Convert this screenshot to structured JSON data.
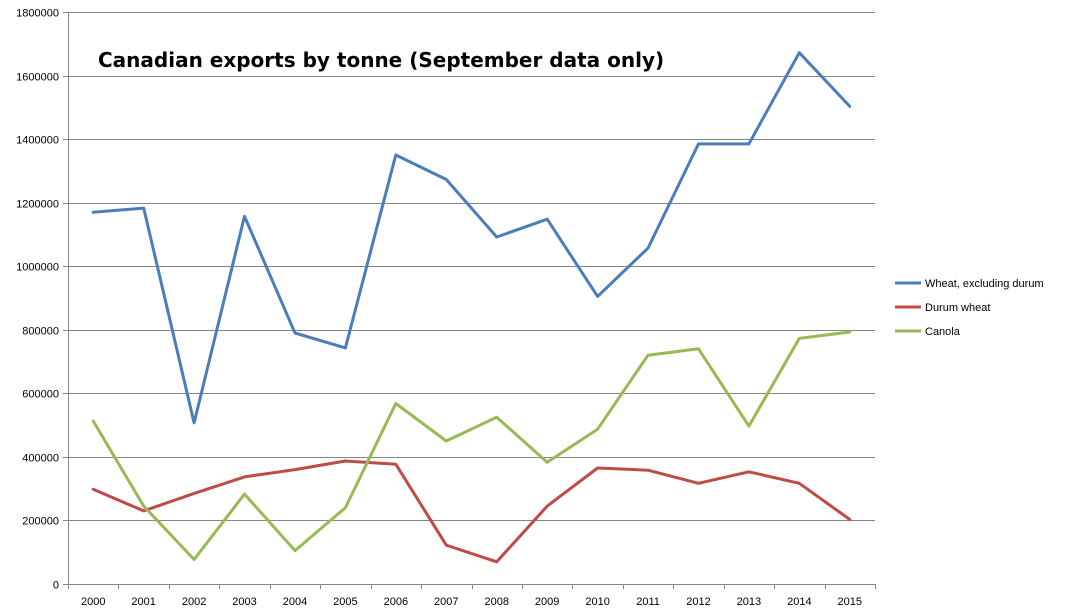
{
  "chart_data": {
    "type": "line",
    "title": "Canadian exports by tonne (September data only)",
    "xlabel": "",
    "ylabel": "",
    "ylim": [
      0,
      1800000
    ],
    "yticks": [
      0,
      200000,
      400000,
      600000,
      800000,
      1000000,
      1200000,
      1400000,
      1600000,
      1800000
    ],
    "ytick_labels": [
      "0",
      "200000",
      "400000",
      "600000",
      "800000",
      "1000000",
      "1200000",
      "1400000",
      "1600000",
      "1800000"
    ],
    "categories": [
      "2000",
      "2001",
      "2002",
      "2003",
      "2004",
      "2005",
      "2006",
      "2007",
      "2008",
      "2009",
      "2010",
      "2011",
      "2012",
      "2013",
      "2014",
      "2015"
    ],
    "grid": "horizontal",
    "legend_position": "right",
    "series": [
      {
        "name": "Wheat, excluding durum",
        "color": "#4a7ebb",
        "values": [
          1170000,
          1183000,
          507000,
          1157000,
          790000,
          743000,
          1350000,
          1273000,
          1092000,
          1148000,
          905000,
          1057000,
          1385000,
          1385000,
          1672000,
          1503000
        ]
      },
      {
        "name": "Durum wheat",
        "color": "#be4b48",
        "values": [
          298000,
          230000,
          285000,
          337000,
          360000,
          387000,
          377000,
          122000,
          70000,
          245000,
          365000,
          358000,
          317000,
          353000,
          317000,
          203000
        ]
      },
      {
        "name": "Canola",
        "color": "#98b954",
        "values": [
          513000,
          245000,
          77000,
          283000,
          105000,
          240000,
          568000,
          450000,
          525000,
          383000,
          487000,
          720000,
          740000,
          497000,
          773000,
          793000
        ]
      }
    ]
  }
}
